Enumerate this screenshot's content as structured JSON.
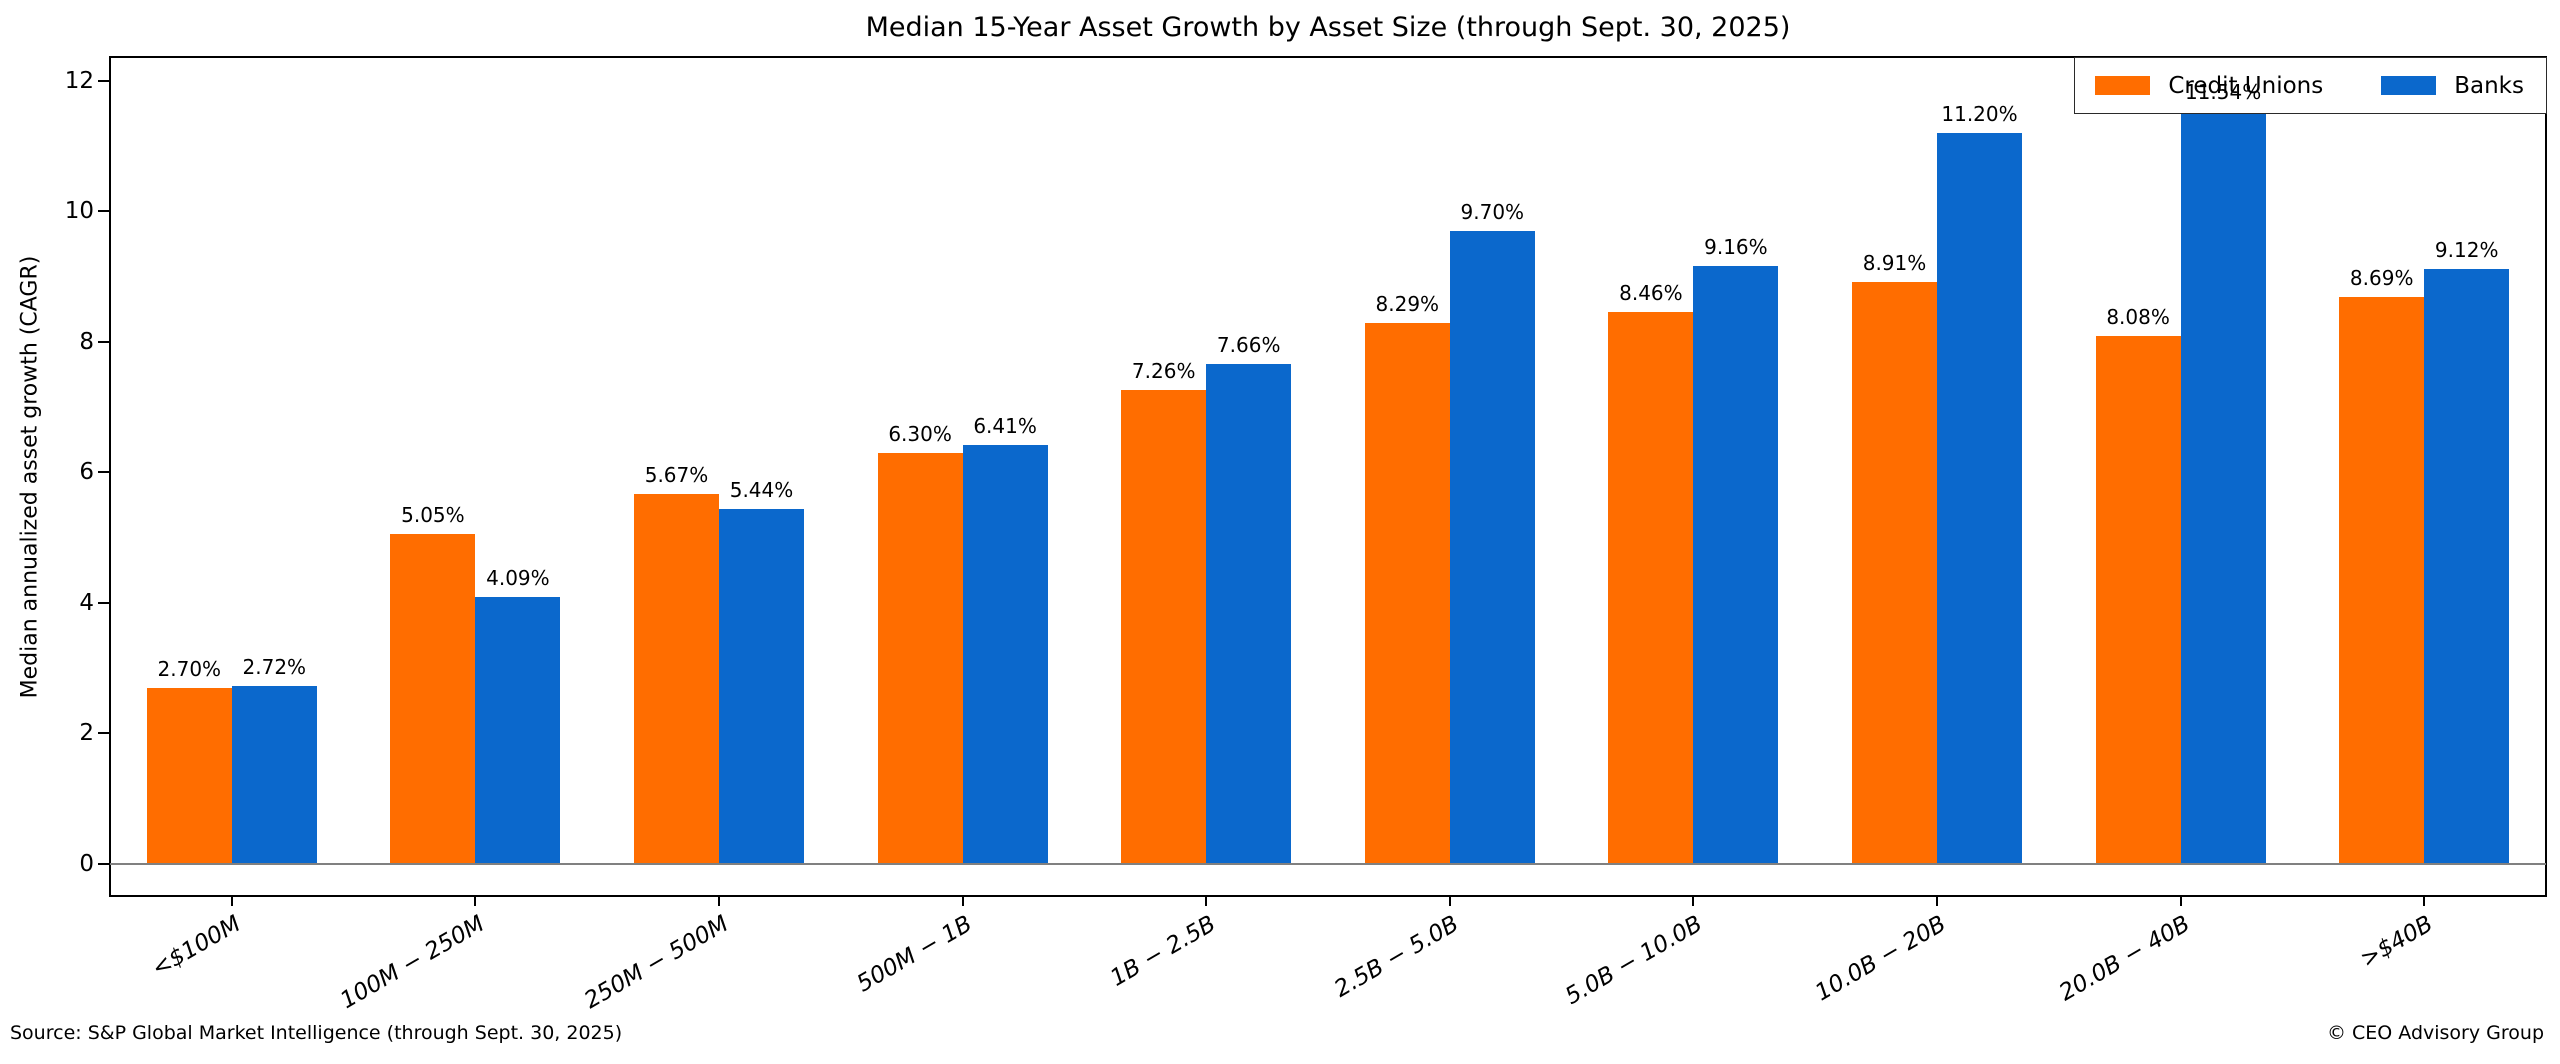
{
  "title": "Median 15-Year Asset Growth by Asset Size (through Sept. 30, 2025)",
  "ylabel": "Median annualized asset growth (CAGR)",
  "footer": {
    "source": "Source: S&P Global Market Intelligence (through Sept. 30, 2025)",
    "credit": "© CEO Advisory Group"
  },
  "legend": [
    {
      "label": "Credit Unions",
      "color": "#ff6d00"
    },
    {
      "label": "Banks",
      "color": "#0b68cc"
    }
  ],
  "colors": {
    "credit_unions": "#ff6d00",
    "banks": "#0b68cc",
    "zero_line": "#808080",
    "spine": "#000000"
  },
  "chart_data": {
    "type": "bar",
    "title": "Median 15-Year Asset Growth by Asset Size (through Sept. 30, 2025)",
    "xlabel": "",
    "ylabel": "Median annualized asset growth (CAGR)",
    "categories": [
      "<$100M",
      "100M − 250M",
      "250M − 500M",
      "500M − 1B",
      "1B − 2.5B",
      "2.5B − 5.0B",
      "5.0B − 10.0B",
      "10.0B − 20B",
      "20.0B − 40B",
      ">$40B"
    ],
    "series": [
      {
        "name": "Credit Unions",
        "color": "#ff6d00",
        "values": [
          2.7,
          5.05,
          5.67,
          6.3,
          7.26,
          8.29,
          8.46,
          8.91,
          8.08,
          8.69
        ],
        "labels": [
          "2.70%",
          "5.05%",
          "5.67%",
          "6.30%",
          "7.26%",
          "8.29%",
          "8.46%",
          "8.91%",
          "8.08%",
          "8.69%"
        ]
      },
      {
        "name": "Banks",
        "color": "#0b68cc",
        "values": [
          2.72,
          4.09,
          5.44,
          6.41,
          7.66,
          9.7,
          9.16,
          11.2,
          11.54,
          9.12
        ],
        "labels": [
          "2.72%",
          "4.09%",
          "5.44%",
          "6.41%",
          "7.66%",
          "9.70%",
          "9.16%",
          "11.20%",
          "11.54%",
          "9.12%"
        ]
      }
    ],
    "yticks": [
      0,
      2,
      4,
      6,
      8,
      10,
      12
    ],
    "ytick_labels": [
      "0",
      "2",
      "4",
      "6",
      "8",
      "10",
      "12"
    ],
    "ylim": [
      0,
      12
    ],
    "grid": false,
    "legend_position": "upper right",
    "bar_value_labels": true,
    "zero_baseline": true
  }
}
